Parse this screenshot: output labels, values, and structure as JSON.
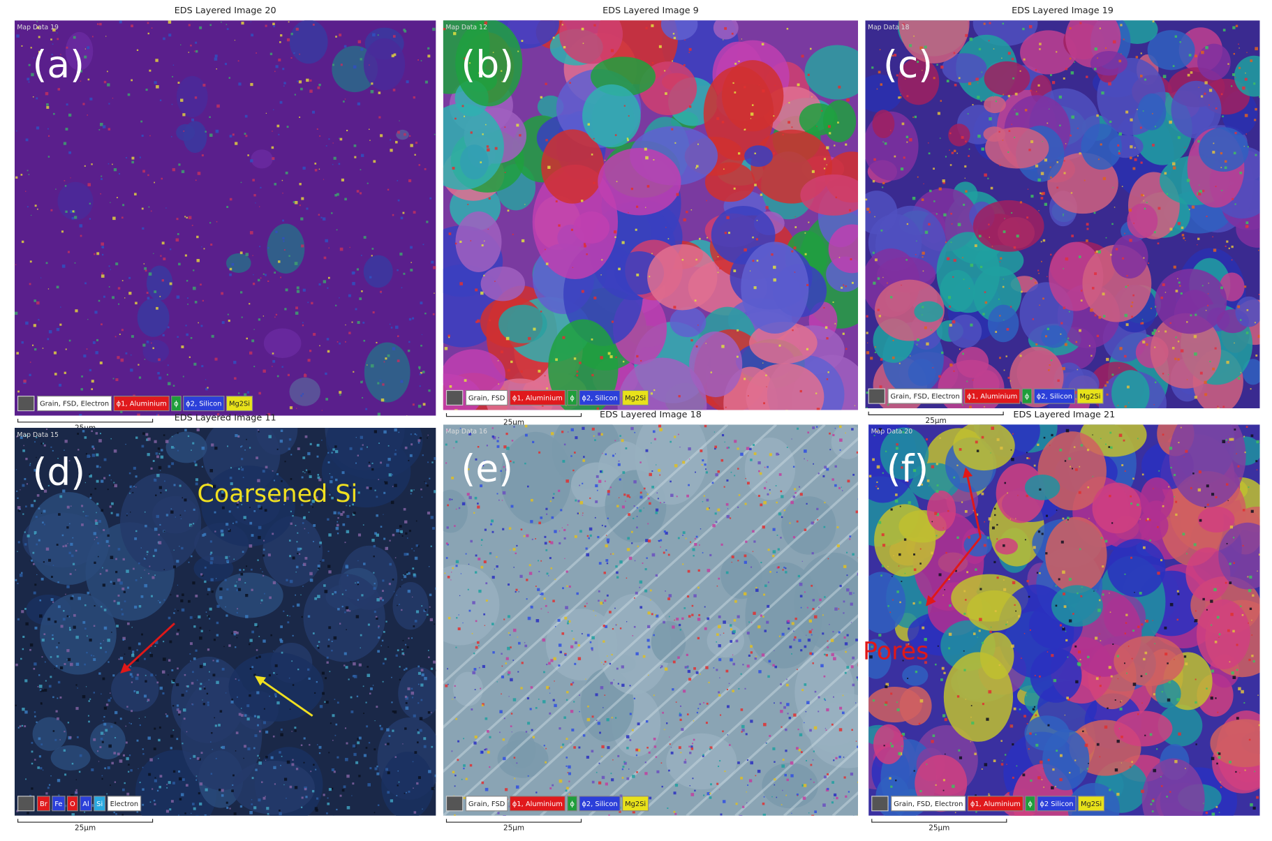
{
  "panels": [
    {
      "letter": "(a)",
      "title": "EDS Layered Image 20",
      "map_label": "Map Data 19",
      "scale": "25µm",
      "legend": [
        {
          "text": "Grain, FSD, Electron",
          "color": "#ffffff"
        },
        {
          "text": "ϕ1, Aluminium",
          "color": "#e0191c"
        },
        {
          "text": "ϕ",
          "color": "#1e9e3a"
        },
        {
          "text": "ϕ2, Silicon",
          "color": "#2b3fd9"
        },
        {
          "text": "Mg2Si",
          "color": "#e8e21a"
        }
      ]
    },
    {
      "letter": "(b)",
      "title": "EDS Layered Image 9",
      "map_label": "Map Data 12",
      "scale": "25µm",
      "legend": [
        {
          "text": "Grain, FSD",
          "color": "#ffffff"
        },
        {
          "text": "ϕ1, Aluminium",
          "color": "#e0191c"
        },
        {
          "text": "ϕ",
          "color": "#1e9e3a"
        },
        {
          "text": "ϕ2, Silicon",
          "color": "#2b3fd9"
        },
        {
          "text": "Mg2Si",
          "color": "#e8e21a"
        }
      ]
    },
    {
      "letter": "(c)",
      "title": "EDS Layered Image 19",
      "map_label": "Map Data 18",
      "scale": "25µm",
      "legend": [
        {
          "text": "Grain, FSD, Electron",
          "color": "#ffffff"
        },
        {
          "text": "ϕ1, Aluminium",
          "color": "#e0191c"
        },
        {
          "text": "ϕ",
          "color": "#1e9e3a"
        },
        {
          "text": "ϕ2, Silicon",
          "color": "#2b3fd9"
        },
        {
          "text": "Mg2Si",
          "color": "#e8e21a"
        }
      ]
    },
    {
      "letter": "(d)",
      "title": "EDS Layered Image 11",
      "map_label": "Map Data 15",
      "scale": "25µm",
      "annotation": "Coarsened Si",
      "legend": [
        {
          "text": "Br",
          "color": "#e0191c"
        },
        {
          "text": "Fe",
          "color": "#2b3fd9"
        },
        {
          "text": "O",
          "color": "#e0191c"
        },
        {
          "text": "Al",
          "color": "#2b3fd9"
        },
        {
          "text": "Si",
          "color": "#29a9e0"
        },
        {
          "text": "Electron",
          "color": "#ffffff"
        }
      ]
    },
    {
      "letter": "(e)",
      "title": "EDS Layered Image 18",
      "map_label": "Map Data 16",
      "scale": "25µm",
      "legend": [
        {
          "text": "Grain, FSD",
          "color": "#ffffff"
        },
        {
          "text": "ϕ1, Aluminium",
          "color": "#e0191c"
        },
        {
          "text": "ϕ",
          "color": "#1e9e3a"
        },
        {
          "text": "ϕ2, Silicon",
          "color": "#2b3fd9"
        },
        {
          "text": "Mg2Si",
          "color": "#e8e21a"
        }
      ]
    },
    {
      "letter": "(f)",
      "title": "EDS Layered Image 21",
      "map_label": "Map Data 20",
      "scale": "25µm",
      "annotation": "Pores",
      "legend": [
        {
          "text": "Grain, FSD, Electron",
          "color": "#ffffff"
        },
        {
          "text": "ϕ1, Aluminium",
          "color": "#e0191c"
        },
        {
          "text": "ϕ",
          "color": "#1e9e3a"
        },
        {
          "text": "ϕ2 Silicon",
          "color": "#2b3fd9"
        },
        {
          "text": "Mg2Si",
          "color": "#e8e21a"
        }
      ]
    }
  ]
}
